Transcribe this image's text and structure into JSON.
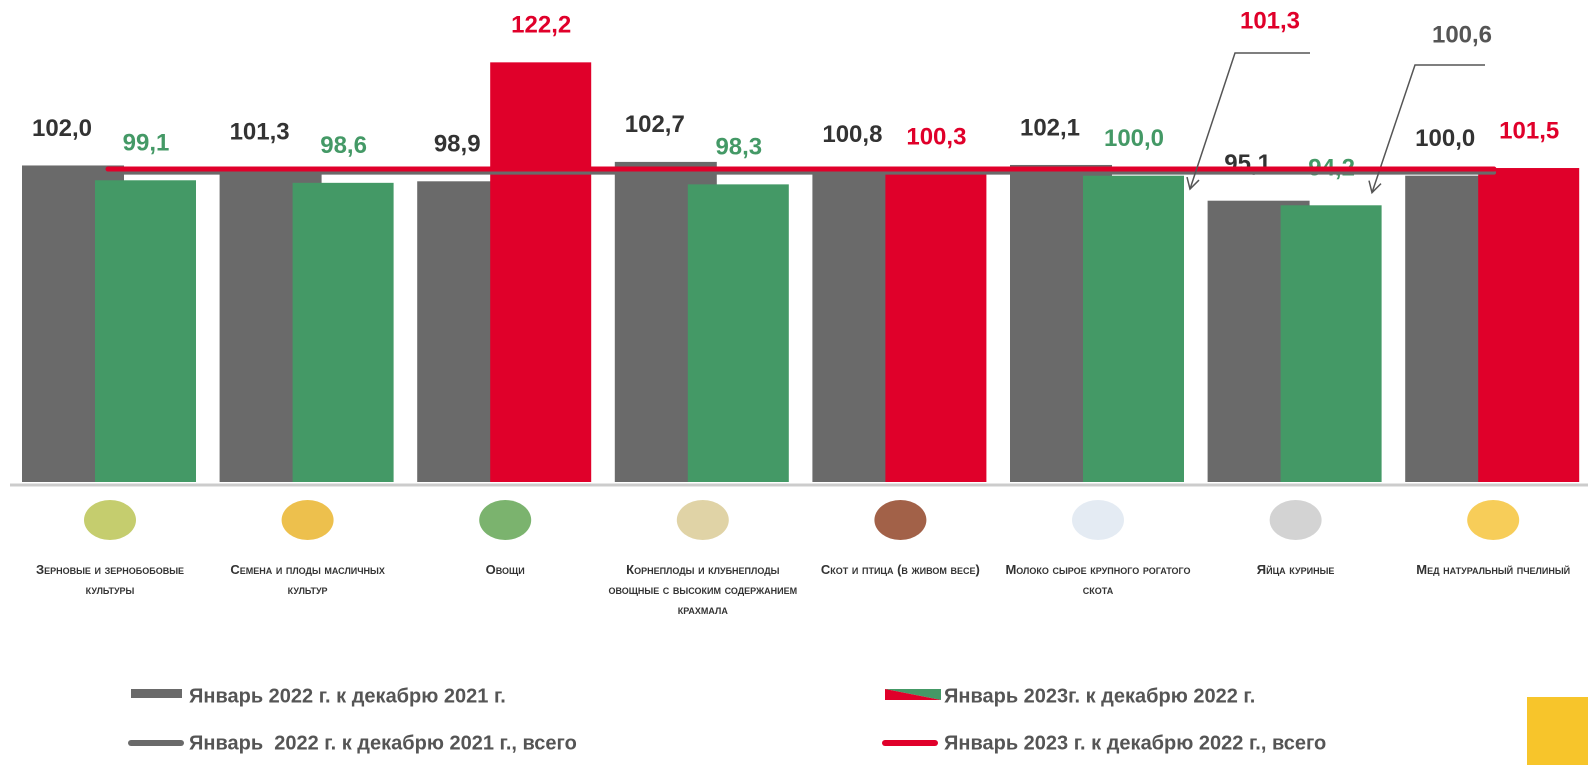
{
  "chart_data": {
    "type": "bar",
    "categories": [
      "Зерновые и зернобобовые культуры",
      "Семена и плоды масличных культур",
      "Овощи",
      "Корнеплоды и клубнеплоды овощные с высоким содержанием крахмала",
      "Скот и птица (в живом весе)",
      "Молоко сырое крупного рогатого скота",
      "Яйца куриные",
      "Мед натуральный пчелиный"
    ],
    "series": [
      {
        "name": "Январь 2022 г. к декабрю 2021 г.",
        "color": "#6a6a6a",
        "values": [
          102.0,
          101.3,
          98.9,
          102.7,
          100.8,
          102.1,
          95.1,
          100.0
        ],
        "value_labels": [
          "102,0",
          "101,3",
          "98,9",
          "102,7",
          "100,8",
          "102,1",
          "95,1",
          "100,0"
        ]
      },
      {
        "name": "Январь 2023г. к декабрю 2022 г.",
        "color": "#449966",
        "colors": [
          "#449966",
          "#449966",
          "#e0002a",
          "#449966",
          "#e0002a",
          "#449966",
          "#449966",
          "#e0002a"
        ],
        "values": [
          99.1,
          98.6,
          122.2,
          98.3,
          100.3,
          100.0,
          94.2,
          101.5
        ],
        "value_labels": [
          "99,1",
          "98,6",
          "122,2",
          "98,3",
          "100,3",
          "100,0",
          "94,2",
          "101,5"
        ]
      }
    ],
    "reference_lines": [
      {
        "name": "Январь  2022 г. к декабрю 2021 г., всего",
        "color": "#6a6a6a",
        "value": 100.6,
        "label": "100,6"
      },
      {
        "name": "Январь 2023 г. к декабрю 2022 г., всего",
        "color": "#e0002a",
        "value": 101.3,
        "label": "101,3"
      }
    ],
    "ylim": [
      40,
      135
    ]
  }
}
